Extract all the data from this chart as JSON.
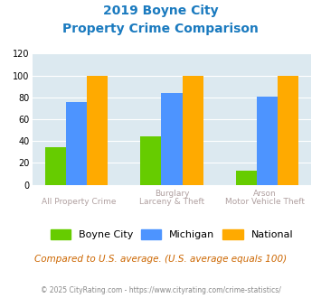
{
  "title_line1": "2019 Boyne City",
  "title_line2": "Property Crime Comparison",
  "title_color": "#1a7abf",
  "cat_labels_top": [
    "",
    "Burglary",
    "Arson"
  ],
  "cat_labels_bottom": [
    "All Property Crime",
    "Larceny & Theft",
    "Motor Vehicle Theft"
  ],
  "boyne_city": [
    34,
    44,
    13
  ],
  "michigan": [
    76,
    84,
    81
  ],
  "national": [
    100,
    100,
    100
  ],
  "colors": {
    "boyne_city": "#66cc00",
    "michigan": "#4d94ff",
    "national": "#ffaa00"
  },
  "ylim": [
    0,
    120
  ],
  "yticks": [
    0,
    20,
    40,
    60,
    80,
    100,
    120
  ],
  "bg_color": "#dce9f0",
  "legend_labels": [
    "Boyne City",
    "Michigan",
    "National"
  ],
  "note": "Compared to U.S. average. (U.S. average equals 100)",
  "note_color": "#cc6600",
  "footer": "© 2025 CityRating.com - https://www.cityrating.com/crime-statistics/",
  "footer_color": "#888888",
  "bar_width": 0.22
}
